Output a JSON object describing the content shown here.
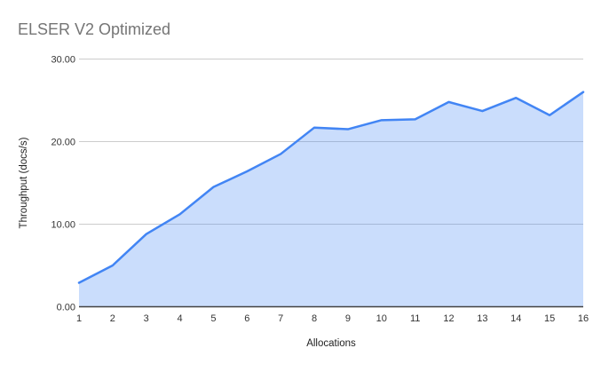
{
  "chart_data": {
    "type": "area",
    "title": "ELSER V2 Optimized",
    "xlabel": "Allocations",
    "ylabel": "Throughput (docs/s)",
    "x": [
      1,
      2,
      3,
      4,
      5,
      6,
      7,
      8,
      9,
      10,
      11,
      12,
      13,
      14,
      15,
      16
    ],
    "series": [
      {
        "name": "Throughput (docs/s)",
        "values": [
          2.9,
          5.0,
          8.8,
          11.2,
          14.5,
          16.4,
          18.5,
          21.7,
          21.5,
          22.6,
          22.7,
          24.8,
          23.7,
          25.3,
          23.2,
          26.0
        ]
      }
    ],
    "ylim": [
      0,
      30
    ],
    "y_ticks": [
      {
        "value": 0,
        "label": "0.00"
      },
      {
        "value": 10,
        "label": "10.00"
      },
      {
        "value": 20,
        "label": "20.00"
      },
      {
        "value": 30,
        "label": "30.00"
      }
    ],
    "grid": true,
    "legend": "none",
    "colors": {
      "line": "#4285f4",
      "fill": "rgba(66,133,244,0.28)",
      "gridline": "#cccccc",
      "axis_line": "#424242",
      "title_text": "#757575",
      "tick_text": "#333333",
      "axis_title_text": "#222222"
    }
  }
}
